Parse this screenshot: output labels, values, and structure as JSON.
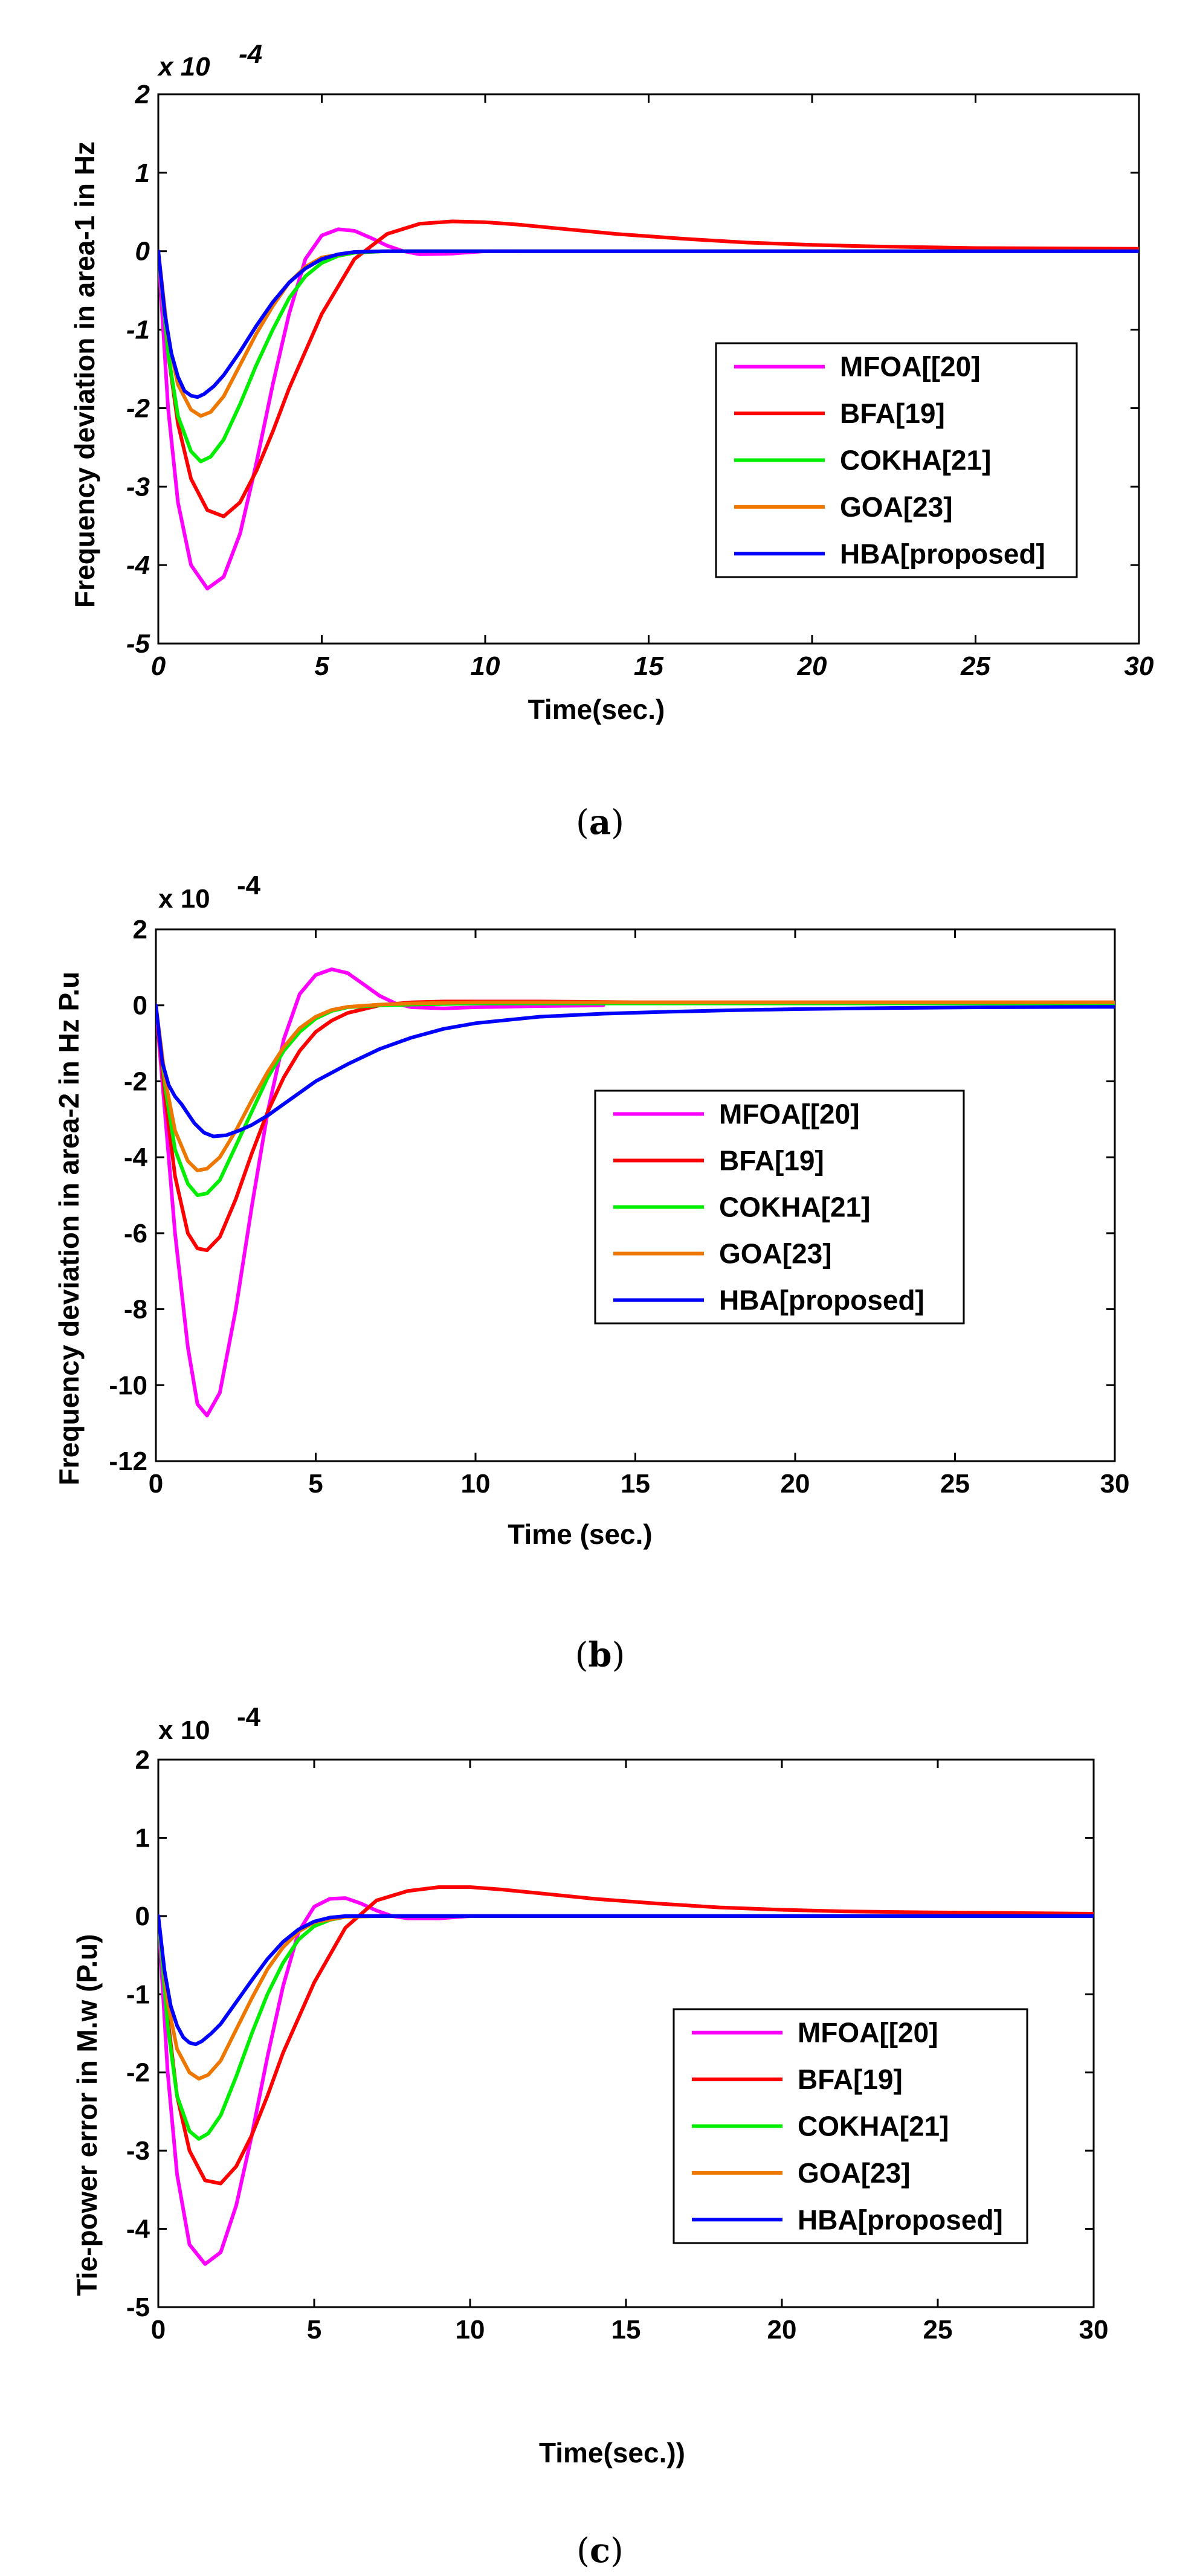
{
  "chart_data": [
    {
      "type": "line",
      "exponent_label": "x 10",
      "exponent_power": "-4",
      "xlabel": "Time(sec.)",
      "ylabel": "Frequency deviation in area-1 in Hz",
      "xlim": [
        0,
        30
      ],
      "ylim": [
        -5,
        2
      ],
      "xticks": [
        "0",
        "5",
        "10",
        "15",
        "20",
        "25",
        "30"
      ],
      "yticks": [
        "2",
        "1",
        "0",
        "-1",
        "-2",
        "-3",
        "-4",
        "-5"
      ],
      "caption_letter": "a",
      "series": [
        {
          "name": "MFOA[[20]",
          "color": "#ff00ff",
          "x": [
            0,
            0.3,
            0.6,
            1.0,
            1.5,
            2.0,
            2.5,
            3.0,
            3.5,
            4.0,
            4.5,
            5.0,
            5.5,
            6.0,
            6.5,
            7.0,
            7.5,
            8.0,
            9.0,
            10.0,
            11.0
          ],
          "y": [
            0,
            -2.0,
            -3.2,
            -4.0,
            -4.3,
            -4.15,
            -3.6,
            -2.7,
            -1.7,
            -0.8,
            -0.1,
            0.2,
            0.28,
            0.26,
            0.17,
            0.07,
            0.0,
            -0.04,
            -0.03,
            0.0,
            0.0
          ]
        },
        {
          "name": "BFA[19]",
          "color": "#ff0000",
          "x": [
            0,
            0.3,
            0.6,
            1.0,
            1.5,
            2.0,
            2.5,
            3.0,
            3.5,
            4.0,
            5.0,
            6.0,
            7.0,
            8.0,
            9.0,
            10.0,
            11.0,
            12.0,
            14.0,
            16.0,
            18.0,
            20.0,
            22.0,
            25.0,
            30.0
          ],
          "y": [
            0,
            -1.3,
            -2.2,
            -2.9,
            -3.3,
            -3.38,
            -3.2,
            -2.8,
            -2.3,
            -1.75,
            -0.8,
            -0.1,
            0.22,
            0.35,
            0.38,
            0.37,
            0.34,
            0.3,
            0.22,
            0.16,
            0.11,
            0.08,
            0.06,
            0.04,
            0.03
          ]
        },
        {
          "name": "COKHA[21]",
          "color": "#00ee00",
          "x": [
            0,
            0.3,
            0.6,
            1.0,
            1.3,
            1.6,
            2.0,
            2.5,
            3.0,
            3.5,
            4.0,
            4.5,
            5.0,
            5.5,
            6.0,
            7.0,
            8.0,
            10.0,
            30.0
          ],
          "y": [
            0,
            -1.3,
            -2.1,
            -2.55,
            -2.68,
            -2.62,
            -2.4,
            -1.95,
            -1.45,
            -1.0,
            -0.6,
            -0.32,
            -0.15,
            -0.06,
            -0.02,
            0.0,
            0.0,
            0.0,
            0.0
          ]
        },
        {
          "name": "GOA[23]",
          "color": "#ee7700",
          "x": [
            0,
            0.3,
            0.6,
            1.0,
            1.3,
            1.6,
            2.0,
            2.5,
            3.0,
            3.5,
            4.0,
            4.5,
            5.0,
            6.0,
            7.0,
            10.0,
            30.0
          ],
          "y": [
            0,
            -1.1,
            -1.7,
            -2.02,
            -2.1,
            -2.05,
            -1.85,
            -1.45,
            -1.05,
            -0.7,
            -0.4,
            -0.2,
            -0.08,
            -0.01,
            0.0,
            0.0,
            0.0
          ]
        },
        {
          "name": "HBA[proposed]",
          "color": "#0000ff",
          "x": [
            0,
            0.2,
            0.4,
            0.6,
            0.8,
            1.0,
            1.2,
            1.4,
            1.7,
            2.0,
            2.5,
            3.0,
            3.5,
            4.0,
            4.5,
            5.0,
            5.5,
            6.0,
            7.0,
            10.0,
            30.0
          ],
          "y": [
            0,
            -0.8,
            -1.3,
            -1.6,
            -1.78,
            -1.84,
            -1.86,
            -1.82,
            -1.72,
            -1.58,
            -1.28,
            -0.95,
            -0.65,
            -0.4,
            -0.22,
            -0.1,
            -0.04,
            -0.01,
            0.0,
            0.0,
            0.0
          ]
        }
      ]
    },
    {
      "type": "line",
      "exponent_label": "x 10",
      "exponent_power": "-4",
      "xlabel": "Time (sec.)",
      "ylabel": "Frequency deviation in area-2 in Hz P.u",
      "xlim": [
        0,
        30
      ],
      "ylim": [
        -12,
        2
      ],
      "xticks": [
        "0",
        "5",
        "10",
        "15",
        "20",
        "25",
        "30"
      ],
      "yticks": [
        "2",
        "0",
        "-2",
        "-4",
        "-6",
        "-8",
        "-10",
        "-12"
      ],
      "caption_letter": "b",
      "series": [
        {
          "name": "MFOA[[20]",
          "color": "#ff00ff",
          "x": [
            0,
            0.3,
            0.6,
            1.0,
            1.3,
            1.6,
            2.0,
            2.5,
            3.0,
            3.5,
            4.0,
            4.5,
            5.0,
            5.5,
            6.0,
            6.5,
            7.0,
            7.5,
            8.0,
            9.0,
            10.0,
            12.0,
            14.0
          ],
          "y": [
            0,
            -3.0,
            -6.0,
            -9.0,
            -10.5,
            -10.8,
            -10.2,
            -8.0,
            -5.3,
            -2.8,
            -0.9,
            0.3,
            0.8,
            0.95,
            0.85,
            0.55,
            0.25,
            0.05,
            -0.05,
            -0.08,
            -0.05,
            -0.02,
            0.0
          ]
        },
        {
          "name": "BFA[19]",
          "color": "#ff0000",
          "x": [
            0,
            0.3,
            0.6,
            1.0,
            1.3,
            1.6,
            2.0,
            2.5,
            3.0,
            3.5,
            4.0,
            4.5,
            5.0,
            5.5,
            6.0,
            7.0,
            8.0,
            9.0,
            10.0,
            12.0,
            15.0,
            20.0,
            30.0
          ],
          "y": [
            0,
            -2.5,
            -4.5,
            -6.0,
            -6.4,
            -6.45,
            -6.1,
            -5.1,
            -3.9,
            -2.8,
            -1.9,
            -1.2,
            -0.7,
            -0.4,
            -0.2,
            0.0,
            0.08,
            0.1,
            0.1,
            0.1,
            0.08,
            0.08,
            0.08
          ]
        },
        {
          "name": "COKHA[21]",
          "color": "#00ee00",
          "x": [
            0,
            0.3,
            0.6,
            1.0,
            1.3,
            1.6,
            2.0,
            2.5,
            3.0,
            3.5,
            4.0,
            4.5,
            5.0,
            5.5,
            6.0,
            7.0,
            8.0,
            10.0,
            15.0,
            20.0,
            30.0
          ],
          "y": [
            0,
            -2.2,
            -3.8,
            -4.7,
            -5.0,
            -4.95,
            -4.6,
            -3.7,
            -2.8,
            -1.9,
            -1.2,
            -0.7,
            -0.35,
            -0.15,
            -0.05,
            0.0,
            0.02,
            0.05,
            0.05,
            0.05,
            0.05
          ]
        },
        {
          "name": "GOA[23]",
          "color": "#ee7700",
          "x": [
            0,
            0.3,
            0.6,
            1.0,
            1.3,
            1.6,
            2.0,
            2.5,
            3.0,
            3.5,
            4.0,
            4.5,
            5.0,
            5.5,
            6.0,
            7.0,
            8.0,
            10.0,
            15.0,
            20.0,
            30.0
          ],
          "y": [
            0,
            -2.0,
            -3.3,
            -4.1,
            -4.35,
            -4.3,
            -4.0,
            -3.3,
            -2.5,
            -1.75,
            -1.1,
            -0.6,
            -0.3,
            -0.12,
            -0.04,
            0.02,
            0.05,
            0.08,
            0.08,
            0.08,
            0.08
          ]
        },
        {
          "name": "HBA[proposed]",
          "color": "#0000ff",
          "x": [
            0,
            0.2,
            0.4,
            0.6,
            0.8,
            1.0,
            1.2,
            1.5,
            1.8,
            2.2,
            2.6,
            3.0,
            3.5,
            4.0,
            4.5,
            5.0,
            6.0,
            7.0,
            8.0,
            9.0,
            10.0,
            12.0,
            14.0,
            16.0,
            18.0,
            20.0,
            23.0,
            26.0,
            30.0
          ],
          "y": [
            0,
            -1.5,
            -2.1,
            -2.4,
            -2.6,
            -2.85,
            -3.1,
            -3.35,
            -3.45,
            -3.42,
            -3.3,
            -3.15,
            -2.9,
            -2.6,
            -2.3,
            -2.0,
            -1.55,
            -1.15,
            -0.85,
            -0.62,
            -0.47,
            -0.3,
            -0.22,
            -0.17,
            -0.13,
            -0.1,
            -0.07,
            -0.05,
            -0.04
          ]
        }
      ]
    },
    {
      "type": "line",
      "exponent_label": "x 10",
      "exponent_power": "-4",
      "xlabel": "Time(sec.))",
      "ylabel": "Tie-power error in M.w (P.u)",
      "xlim": [
        0,
        30
      ],
      "ylim": [
        -5,
        2
      ],
      "xticks": [
        "0",
        "5",
        "10",
        "15",
        "20",
        "25",
        "30"
      ],
      "yticks": [
        "2",
        "1",
        "0",
        "-1",
        "-2",
        "-3",
        "-4",
        "-5"
      ],
      "caption_letter": "c",
      "series": [
        {
          "name": "MFOA[[20]",
          "color": "#ff00ff",
          "x": [
            0,
            0.3,
            0.6,
            1.0,
            1.5,
            2.0,
            2.5,
            3.0,
            3.5,
            4.0,
            4.5,
            5.0,
            5.5,
            6.0,
            6.5,
            7.0,
            7.5,
            8.0,
            9.0,
            10.0,
            11.5
          ],
          "y": [
            0,
            -2.0,
            -3.3,
            -4.2,
            -4.45,
            -4.3,
            -3.7,
            -2.8,
            -1.8,
            -0.9,
            -0.2,
            0.12,
            0.22,
            0.23,
            0.16,
            0.07,
            0.0,
            -0.03,
            -0.03,
            0.0,
            0.0
          ]
        },
        {
          "name": "BFA[19]",
          "color": "#ff0000",
          "x": [
            0,
            0.3,
            0.6,
            1.0,
            1.5,
            2.0,
            2.5,
            3.0,
            3.5,
            4.0,
            5.0,
            6.0,
            7.0,
            8.0,
            9.0,
            10.0,
            11.0,
            12.0,
            14.0,
            16.0,
            18.0,
            20.0,
            22.0,
            24.0,
            30.0
          ],
          "y": [
            0,
            -1.3,
            -2.3,
            -3.0,
            -3.38,
            -3.42,
            -3.2,
            -2.8,
            -2.3,
            -1.75,
            -0.85,
            -0.15,
            0.2,
            0.32,
            0.37,
            0.37,
            0.34,
            0.3,
            0.22,
            0.16,
            0.11,
            0.08,
            0.06,
            0.05,
            0.03
          ]
        },
        {
          "name": "COKHA[21]",
          "color": "#00ee00",
          "x": [
            0,
            0.3,
            0.6,
            1.0,
            1.3,
            1.6,
            2.0,
            2.5,
            3.0,
            3.5,
            4.0,
            4.5,
            5.0,
            5.5,
            6.0,
            7.0,
            8.0,
            10.0,
            30.0
          ],
          "y": [
            0,
            -1.4,
            -2.3,
            -2.75,
            -2.85,
            -2.78,
            -2.55,
            -2.05,
            -1.5,
            -1.0,
            -0.6,
            -0.3,
            -0.13,
            -0.05,
            -0.01,
            0.0,
            0.0,
            0.0,
            0.0
          ]
        },
        {
          "name": "GOA[23]",
          "color": "#ee7700",
          "x": [
            0,
            0.3,
            0.6,
            1.0,
            1.3,
            1.6,
            2.0,
            2.5,
            3.0,
            3.5,
            4.0,
            4.5,
            5.0,
            6.0,
            7.0,
            10.0,
            30.0
          ],
          "y": [
            0,
            -1.1,
            -1.7,
            -2.0,
            -2.08,
            -2.03,
            -1.85,
            -1.45,
            -1.05,
            -0.68,
            -0.4,
            -0.2,
            -0.08,
            -0.01,
            0.0,
            0.0,
            0.0
          ]
        },
        {
          "name": "HBA[proposed]",
          "color": "#0000ff",
          "x": [
            0,
            0.2,
            0.4,
            0.6,
            0.8,
            1.0,
            1.2,
            1.4,
            1.7,
            2.0,
            2.5,
            3.0,
            3.5,
            4.0,
            4.5,
            5.0,
            5.5,
            6.0,
            7.0,
            10.0,
            30.0
          ],
          "y": [
            0,
            -0.7,
            -1.15,
            -1.4,
            -1.55,
            -1.62,
            -1.64,
            -1.6,
            -1.5,
            -1.38,
            -1.1,
            -0.82,
            -0.55,
            -0.33,
            -0.17,
            -0.07,
            -0.02,
            0.0,
            0.0,
            0.0,
            0.0
          ]
        }
      ]
    }
  ]
}
